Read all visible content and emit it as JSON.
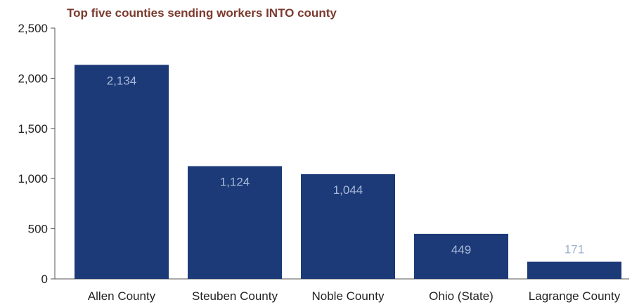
{
  "chart_data": {
    "type": "bar",
    "title": "Top five counties sending workers INTO county",
    "xlabel": "",
    "ylabel": "",
    "categories": [
      "Allen County",
      "Steuben County",
      "Noble County",
      "Ohio (State)",
      "Lagrange County"
    ],
    "values": [
      2134,
      1124,
      1044,
      449,
      171
    ],
    "value_labels": [
      "2,134",
      "1,124",
      "1,044",
      "449",
      "171"
    ],
    "ylim": [
      0,
      2500
    ],
    "yticks": [
      0,
      500,
      1000,
      1500,
      2000,
      2500
    ],
    "ytick_labels": [
      "0",
      "500",
      "1,000",
      "1,500",
      "2,000",
      "2,500"
    ],
    "grid": false,
    "legend": "none",
    "colors": {
      "bar": "#1c3a78",
      "label_inside": "#a9b9d8",
      "label_above": "#9db0d2",
      "axis": "#555555",
      "title": "#7b3a2e"
    }
  }
}
